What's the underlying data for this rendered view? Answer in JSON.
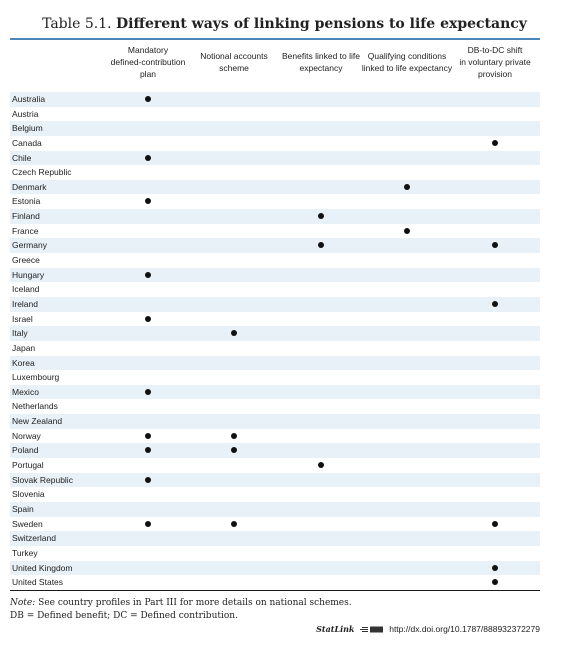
{
  "title": {
    "number": "Table 5.1.",
    "text": "Different ways of linking pensions to life expectancy"
  },
  "columns": [
    "Mandatory defined-contribution plan",
    "Notional accounts scheme",
    "Benefits linked to life expectancy",
    "Qualifying conditions linked to life expectancy",
    "DB-to-DC shift in voluntary private provision"
  ],
  "column_lines": [
    [
      "Mandatory",
      "defined-contribution",
      "plan"
    ],
    [
      "Notional accounts",
      "scheme"
    ],
    [
      "Benefits linked to life",
      "expectancy"
    ],
    [
      "Qualifying conditions",
      "linked to life expectancy"
    ],
    [
      "DB-to-DC shift",
      "in voluntary private",
      "provision"
    ]
  ],
  "rows": [
    {
      "country": "Australia",
      "marks": [
        true,
        false,
        false,
        false,
        false
      ]
    },
    {
      "country": "Austria",
      "marks": [
        false,
        false,
        false,
        false,
        false
      ]
    },
    {
      "country": "Belgium",
      "marks": [
        false,
        false,
        false,
        false,
        false
      ]
    },
    {
      "country": "Canada",
      "marks": [
        false,
        false,
        false,
        false,
        true
      ]
    },
    {
      "country": "Chile",
      "marks": [
        true,
        false,
        false,
        false,
        false
      ]
    },
    {
      "country": "Czech Republic",
      "marks": [
        false,
        false,
        false,
        false,
        false
      ]
    },
    {
      "country": "Denmark",
      "marks": [
        false,
        false,
        false,
        true,
        false
      ]
    },
    {
      "country": "Estonia",
      "marks": [
        true,
        false,
        false,
        false,
        false
      ]
    },
    {
      "country": "Finland",
      "marks": [
        false,
        false,
        true,
        false,
        false
      ]
    },
    {
      "country": "France",
      "marks": [
        false,
        false,
        false,
        true,
        false
      ]
    },
    {
      "country": "Germany",
      "marks": [
        false,
        false,
        true,
        false,
        true
      ]
    },
    {
      "country": "Greece",
      "marks": [
        false,
        false,
        false,
        false,
        false
      ]
    },
    {
      "country": "Hungary",
      "marks": [
        true,
        false,
        false,
        false,
        false
      ]
    },
    {
      "country": "Iceland",
      "marks": [
        false,
        false,
        false,
        false,
        false
      ]
    },
    {
      "country": "Ireland",
      "marks": [
        false,
        false,
        false,
        false,
        true
      ]
    },
    {
      "country": "Israel",
      "marks": [
        true,
        false,
        false,
        false,
        false
      ]
    },
    {
      "country": "Italy",
      "marks": [
        false,
        true,
        false,
        false,
        false
      ]
    },
    {
      "country": "Japan",
      "marks": [
        false,
        false,
        false,
        false,
        false
      ]
    },
    {
      "country": "Korea",
      "marks": [
        false,
        false,
        false,
        false,
        false
      ]
    },
    {
      "country": "Luxembourg",
      "marks": [
        false,
        false,
        false,
        false,
        false
      ]
    },
    {
      "country": "Mexico",
      "marks": [
        true,
        false,
        false,
        false,
        false
      ]
    },
    {
      "country": "Netherlands",
      "marks": [
        false,
        false,
        false,
        false,
        false
      ]
    },
    {
      "country": "New Zealand",
      "marks": [
        false,
        false,
        false,
        false,
        false
      ]
    },
    {
      "country": "Norway",
      "marks": [
        true,
        true,
        false,
        false,
        false
      ]
    },
    {
      "country": "Poland",
      "marks": [
        true,
        true,
        false,
        false,
        false
      ]
    },
    {
      "country": "Portugal",
      "marks": [
        false,
        false,
        true,
        false,
        false
      ]
    },
    {
      "country": "Slovak Republic",
      "marks": [
        true,
        false,
        false,
        false,
        false
      ]
    },
    {
      "country": "Slovenia",
      "marks": [
        false,
        false,
        false,
        false,
        false
      ]
    },
    {
      "country": "Spain",
      "marks": [
        false,
        false,
        false,
        false,
        false
      ]
    },
    {
      "country": "Sweden",
      "marks": [
        true,
        true,
        false,
        false,
        true
      ]
    },
    {
      "country": "Switzerland",
      "marks": [
        false,
        false,
        false,
        false,
        false
      ]
    },
    {
      "country": "Turkey",
      "marks": [
        false,
        false,
        false,
        false,
        false
      ]
    },
    {
      "country": "United Kingdom",
      "marks": [
        false,
        false,
        false,
        false,
        true
      ]
    },
    {
      "country": "United States",
      "marks": [
        false,
        false,
        false,
        false,
        true
      ]
    }
  ],
  "note": {
    "label": "Note:",
    "text": "See country profiles in Part III for more details on national schemes.",
    "abbreviations": "DB = Defined benefit; DC = Defined contribution."
  },
  "statlink": {
    "label": "StatLink",
    "url": "http://dx.doi.org/10.1787/888932372279"
  },
  "colors": {
    "rule": "#4a86b8",
    "row_shade": "#e8f0f8",
    "mark": "#111111"
  }
}
